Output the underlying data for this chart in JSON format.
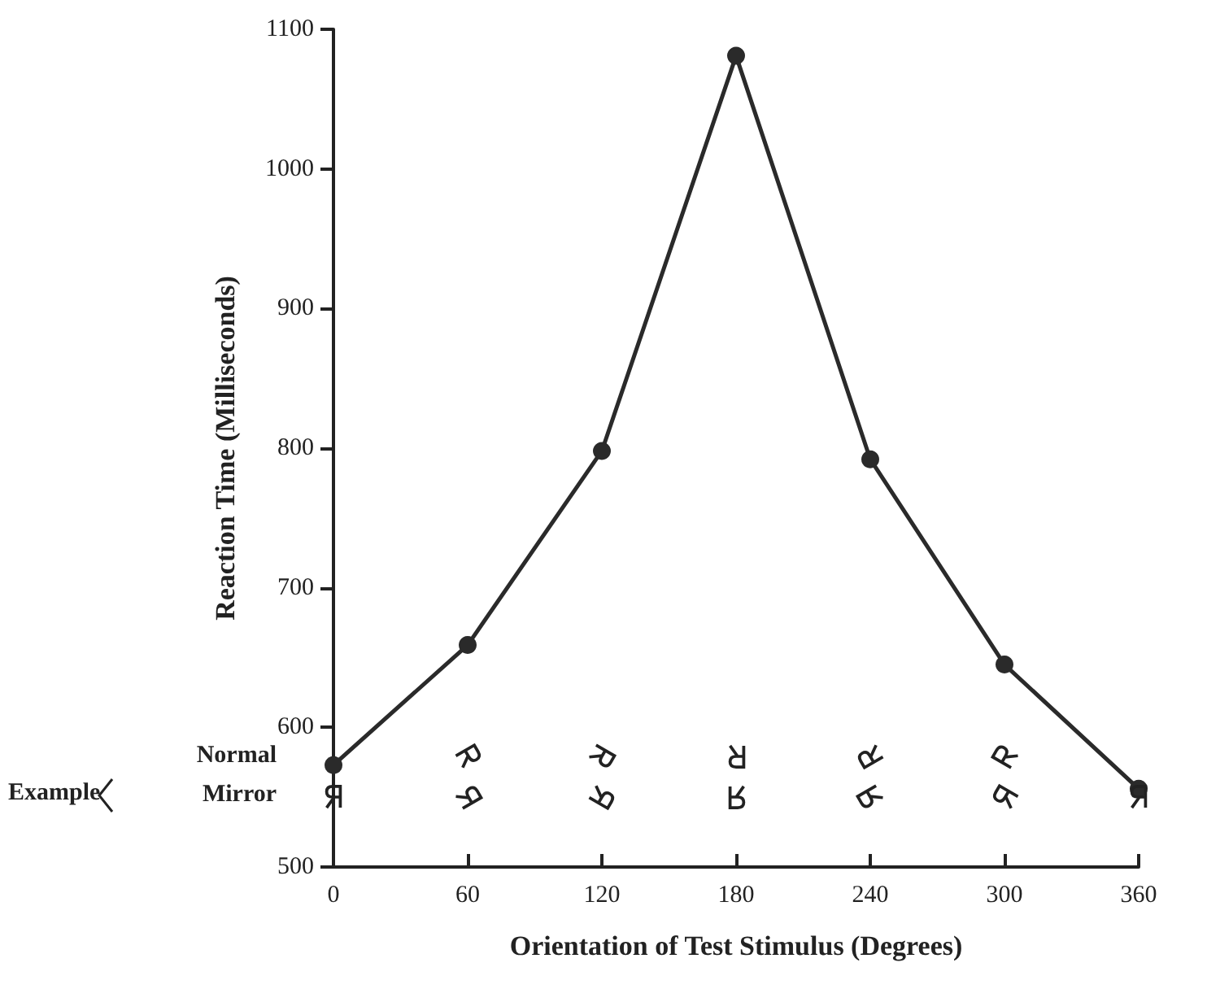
{
  "chart_data": {
    "type": "line",
    "xlabel": "Orientation of Test Stimulus (Degrees)",
    "ylabel": "Reaction Time (Milliseconds)",
    "x": [
      0,
      60,
      120,
      180,
      240,
      300,
      360
    ],
    "series": [
      {
        "color": "#2a2a2a",
        "values": [
          573,
          659,
          798,
          1081,
          792,
          645,
          556
        ]
      }
    ],
    "xlim": [
      0,
      360
    ],
    "xticks": [
      0,
      60,
      120,
      180,
      240,
      300,
      360
    ],
    "ylim": [
      500,
      1100
    ],
    "yticks": [
      500,
      600,
      700,
      800,
      900,
      1000,
      1100
    ],
    "marker": "circle",
    "line_style": "solid",
    "grid": false,
    "annotations": [
      "Example",
      "Normal",
      "Mirror"
    ]
  }
}
